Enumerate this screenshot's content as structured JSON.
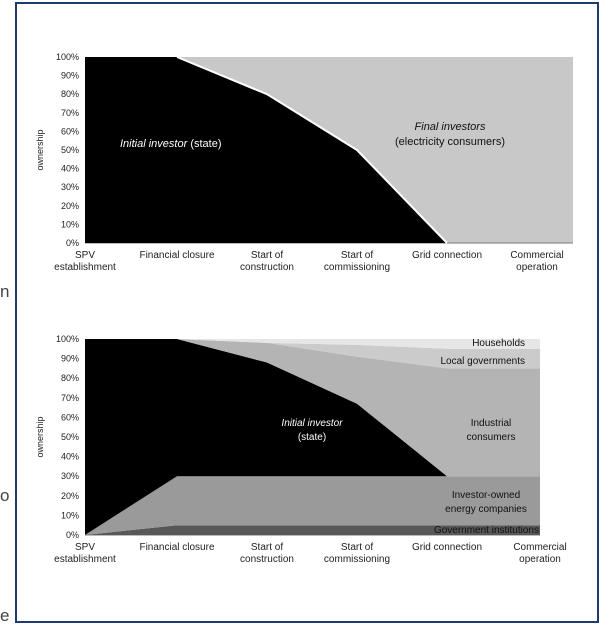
{
  "edge_text": [
    "n",
    "o",
    "e"
  ],
  "colors": {
    "frame": "#1f3b6e",
    "black": "#000000",
    "light_gray": "#c8c8c8",
    "households": "#e6e6e6",
    "local_governments": "#cbcbcb",
    "industrial_consumers": "#b4b4b4",
    "investor_owned": "#9a9a9a",
    "government_institutions": "#585858"
  },
  "chart_data": [
    {
      "type": "area",
      "categories": [
        "SPV establishment",
        "Financial closure",
        "Start of construction",
        "Start of commissioning",
        "Grid connection",
        "Commercial operation"
      ],
      "series": [
        {
          "name": "Initial investor (state)",
          "values": [
            100,
            100,
            80,
            50,
            0,
            0
          ]
        },
        {
          "name": "Final investors (electricity consumers)",
          "values": [
            0,
            0,
            20,
            50,
            100,
            100
          ]
        }
      ],
      "ylabel": "ownership",
      "ylim": [
        0,
        100
      ],
      "yticks": [
        "0%",
        "10%",
        "20%",
        "30%",
        "40%",
        "50%",
        "60%",
        "70%",
        "80%",
        "90%",
        "100%"
      ],
      "annotations": [
        {
          "italic": "Initial investor",
          "normal": " (state)"
        },
        {
          "italic": "Final investors",
          "normal": "(electricity consumers)"
        }
      ]
    },
    {
      "type": "area",
      "stacked": true,
      "categories": [
        "SPV establishment",
        "Financial closure",
        "Start of construction",
        "Start of commissioning",
        "Grid connection",
        "Commercial operation"
      ],
      "series": [
        {
          "name": "Government institutions",
          "values": [
            0,
            5,
            5,
            5,
            5,
            5
          ]
        },
        {
          "name": "Investor-owned energy companies",
          "values": [
            0,
            25,
            25,
            25,
            25,
            25
          ]
        },
        {
          "name": "Initial investor (state)",
          "values": [
            100,
            70,
            58,
            37,
            0,
            0
          ]
        },
        {
          "name": "Industrial consumers",
          "values": [
            0,
            0,
            10,
            24,
            55,
            55
          ]
        },
        {
          "name": "Local governments",
          "values": [
            0,
            0,
            0,
            6,
            10,
            10
          ]
        },
        {
          "name": "Households",
          "values": [
            0,
            0,
            2,
            3,
            5,
            5
          ]
        }
      ],
      "ylabel": "ownership",
      "ylim": [
        0,
        100
      ],
      "yticks": [
        "0%",
        "10%",
        "20%",
        "30%",
        "40%",
        "50%",
        "60%",
        "70%",
        "80%",
        "90%",
        "100%"
      ],
      "labels": {
        "households": "Households",
        "local_governments": "Local governments",
        "industrial": [
          "Industrial",
          "consumers"
        ],
        "investor_owned": [
          "Investor-owned",
          "energy companies"
        ],
        "government": "Government institutions",
        "initial": [
          "Initial investor",
          "(state)"
        ]
      }
    }
  ]
}
